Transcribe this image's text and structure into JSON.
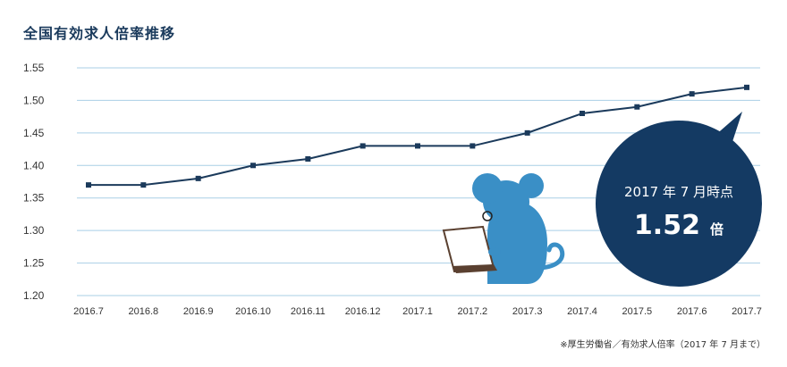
{
  "chart_data": {
    "type": "line",
    "title": "全国有効求人倍率推移",
    "categories": [
      "2016.7",
      "2016.8",
      "2016.9",
      "2016.10",
      "2016.11",
      "2016.12",
      "2017.1",
      "2017.2",
      "2017.3",
      "2017.4",
      "2017.5",
      "2017.6",
      "2017.7"
    ],
    "values": [
      1.37,
      1.37,
      1.38,
      1.4,
      1.41,
      1.43,
      1.43,
      1.43,
      1.45,
      1.48,
      1.49,
      1.51,
      1.52
    ],
    "ylim": [
      1.2,
      1.55
    ],
    "yticks": [
      "1.55",
      "1.50",
      "1.45",
      "1.40",
      "1.35",
      "1.30",
      "1.25",
      "1.20"
    ],
    "grid": true,
    "series_color": "#1b3a5b",
    "grid_color": "#a9cfe6"
  },
  "callout": {
    "line1": "2017 年 7 月時点",
    "value": "1.52",
    "unit": "倍",
    "color": "#143a63"
  },
  "mascot": {
    "icon": "mouse-with-laptop-icon",
    "color": "#3a8fc6"
  },
  "source": "※厚生労働省／有効求人倍率（2017 年 7 月まで）"
}
